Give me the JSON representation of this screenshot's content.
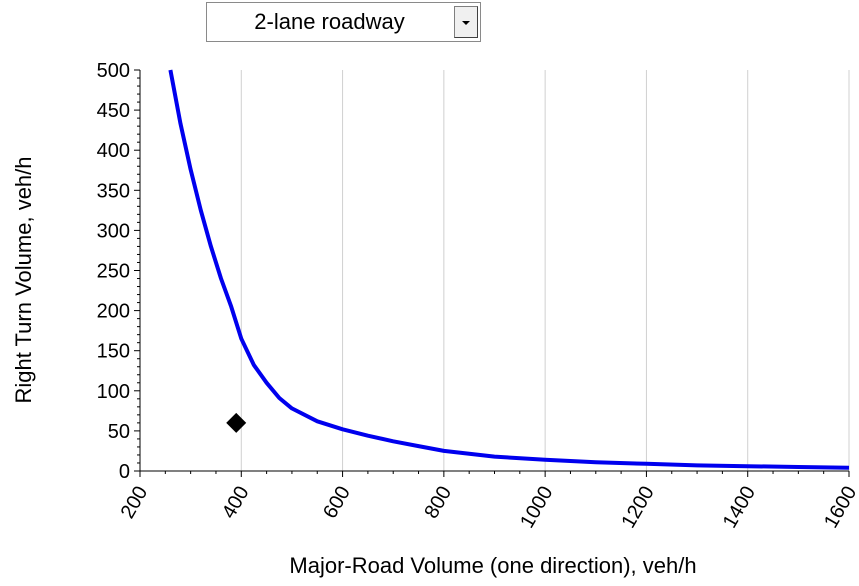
{
  "dropdown": {
    "selected": "2-lane roadway"
  },
  "chart_data": {
    "type": "line",
    "title": "",
    "xlabel": "Major-Road Volume (one direction), veh/h",
    "ylabel": "Right Turn Volume, veh/h",
    "xlim": [
      200,
      1600
    ],
    "ylim": [
      0,
      500
    ],
    "x_ticks": [
      200,
      400,
      600,
      800,
      1000,
      1200,
      1400,
      1600
    ],
    "y_ticks": [
      0,
      50,
      100,
      150,
      200,
      250,
      300,
      350,
      400,
      450,
      500
    ],
    "grid": "vertical",
    "legend": "none",
    "series": [
      {
        "color": "#0000ee",
        "x": [
          260,
          280,
          300,
          320,
          340,
          360,
          380,
          400,
          425,
          450,
          475,
          500,
          550,
          600,
          650,
          700,
          750,
          800,
          900,
          1000,
          1100,
          1200,
          1300,
          1400,
          1500,
          1600
        ],
        "y": [
          500,
          433,
          376,
          325,
          280,
          240,
          205,
          165,
          132,
          110,
          91,
          78,
          62,
          52,
          44,
          37,
          31,
          25,
          18,
          14,
          11,
          9,
          7,
          6,
          5,
          4
        ]
      }
    ],
    "points": [
      {
        "x": 390,
        "y": 60,
        "marker": "diamond",
        "color": "#000000"
      }
    ]
  }
}
